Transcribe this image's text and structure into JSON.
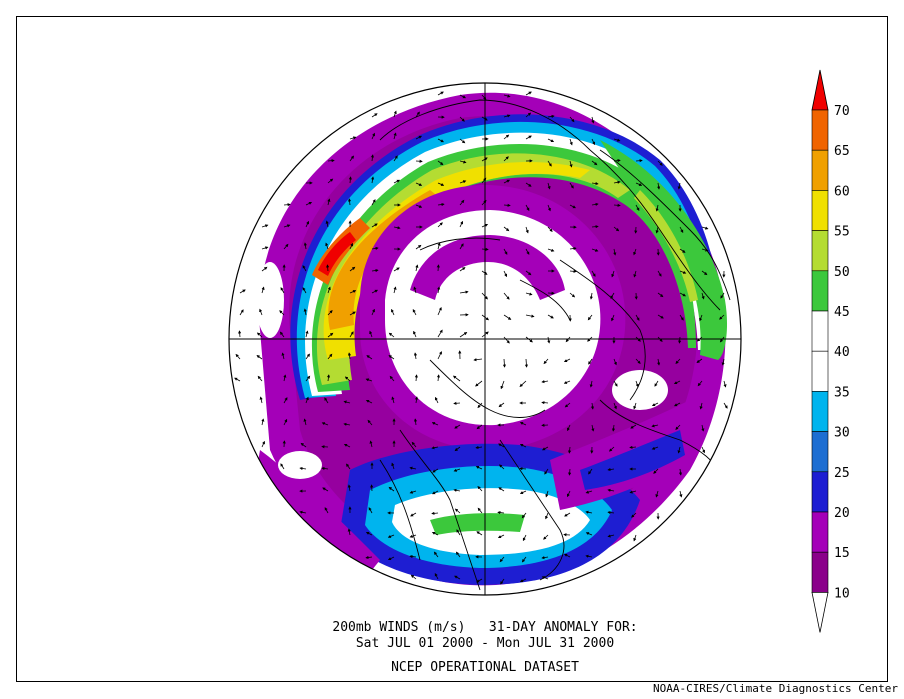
{
  "map": {
    "title_line1": "200mb WINDS (m/s)   31-DAY ANOMALY FOR:",
    "title_line2": "Sat JUL 01 2000 - Mon JUL 31 2000",
    "title_line3": "NCEP OPERATIONAL DATASET",
    "credit": "NOAA-CIRES/Climate Diagnostics Center",
    "projection": "polar stereographic, north pole centered"
  },
  "colorbar": {
    "levels": [
      "10",
      "15",
      "20",
      "25",
      "30",
      "35",
      "40",
      "45",
      "50",
      "55",
      "60",
      "65",
      "70"
    ],
    "colors": [
      "#8a008a",
      "#a400b8",
      "#1e1ed2",
      "#1e6ed2",
      "#00b4ee",
      "#ffffff",
      "#ffffff",
      "#3cc83c",
      "#b4dc32",
      "#f0e000",
      "#f0a000",
      "#f06400",
      "#f00000"
    ]
  }
}
